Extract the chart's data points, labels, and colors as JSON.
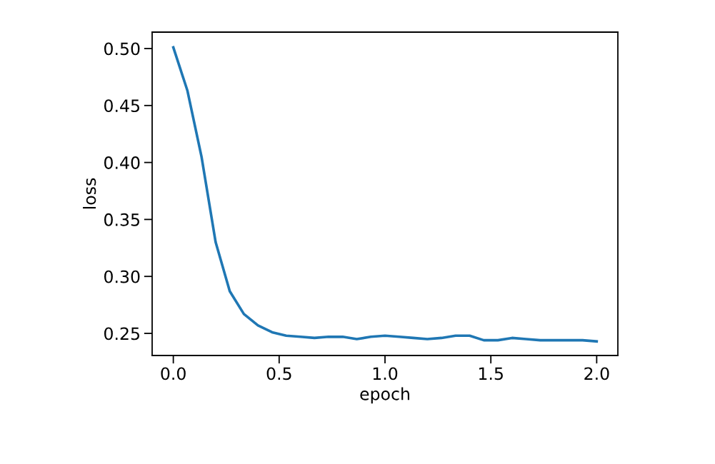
{
  "chart_data": {
    "type": "line",
    "xlabel": "epoch",
    "ylabel": "loss",
    "x": [
      0,
      0.0667,
      0.1333,
      0.2,
      0.2667,
      0.3333,
      0.4,
      0.4667,
      0.5333,
      0.6,
      0.6667,
      0.7333,
      0.8,
      0.8667,
      0.9333,
      1.0,
      1.0667,
      1.1333,
      1.2,
      1.2667,
      1.3333,
      1.4,
      1.4667,
      1.5333,
      1.6,
      1.6667,
      1.7333,
      1.8,
      1.8667,
      1.9333,
      2.0
    ],
    "series": [
      {
        "color": "#1f77b4",
        "values": [
          0.501,
          0.463,
          0.405,
          0.33,
          0.287,
          0.267,
          0.257,
          0.251,
          0.248,
          0.247,
          0.246,
          0.247,
          0.247,
          0.245,
          0.247,
          0.248,
          0.247,
          0.246,
          0.245,
          0.246,
          0.248,
          0.248,
          0.244,
          0.244,
          0.246,
          0.245,
          0.244,
          0.244,
          0.244,
          0.244,
          0.243
        ]
      }
    ],
    "xlim": [
      -0.1,
      2.1
    ],
    "ylim": [
      0.2306,
      0.5144
    ],
    "xticks": [
      {
        "value": 0,
        "label": "0.0"
      },
      0.5,
      {
        "value": 1,
        "label": "1.0"
      },
      1.5,
      {
        "value": 2,
        "label": "2.0"
      }
    ],
    "yticks": [
      {
        "value": 0.25,
        "label": "0.25"
      },
      {
        "value": 0.3,
        "label": "0.30"
      },
      0.35,
      {
        "value": 0.4,
        "label": "0.40"
      },
      0.45,
      {
        "value": 0.5,
        "label": "0.50"
      }
    ],
    "grid": false,
    "legend": false
  }
}
